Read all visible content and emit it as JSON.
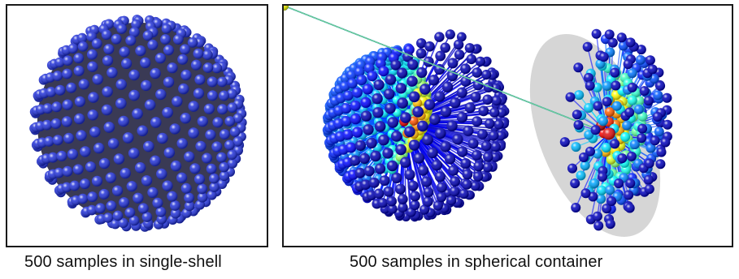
{
  "figure": {
    "captions": {
      "single_shell": "500 samples in single-shell",
      "spherical_container": "500 samples in spherical container"
    },
    "sample_count": 500,
    "colors": {
      "border": "#1a1a1a",
      "sample_low": "#2030d8",
      "sample_high": "#e01010",
      "section_backdrop": "#d6d6d6"
    }
  }
}
